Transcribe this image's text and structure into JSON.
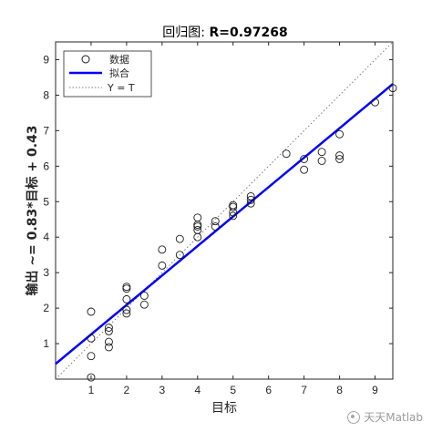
{
  "chart_data": {
    "type": "scatter",
    "title_prefix": "回归图: ",
    "title_stat": "R=0.97268",
    "xlabel": "目标",
    "ylabel": "输出 ~= 0.83*目标 + 0.43",
    "xlim": [
      0,
      9.5
    ],
    "ylim": [
      0,
      9.5
    ],
    "xticks": [
      1,
      2,
      3,
      4,
      5,
      6,
      7,
      8,
      9
    ],
    "yticks": [
      1,
      2,
      3,
      4,
      5,
      6,
      7,
      8,
      9
    ],
    "grid": false,
    "legend_position": "top-left",
    "legend": [
      {
        "label": "数据",
        "kind": "marker"
      },
      {
        "label": "拟合",
        "kind": "line"
      },
      {
        "label": "Y = T",
        "kind": "dotted"
      }
    ],
    "fit": {
      "slope": 0.83,
      "intercept": 0.43,
      "color": "#0000ff"
    },
    "identity_color": "#7a7a7a",
    "marker_color": "#1a1a1a",
    "points": [
      {
        "x": 1,
        "y": 0.05
      },
      {
        "x": 1,
        "y": 0.65
      },
      {
        "x": 1,
        "y": 1.15
      },
      {
        "x": 1,
        "y": 1.9
      },
      {
        "x": 1.5,
        "y": 0.9
      },
      {
        "x": 1.5,
        "y": 1.05
      },
      {
        "x": 1.5,
        "y": 1.35
      },
      {
        "x": 1.5,
        "y": 1.45
      },
      {
        "x": 2,
        "y": 1.85
      },
      {
        "x": 2,
        "y": 1.95
      },
      {
        "x": 2,
        "y": 2.25
      },
      {
        "x": 2,
        "y": 2.55
      },
      {
        "x": 2,
        "y": 2.6
      },
      {
        "x": 2.5,
        "y": 2.1
      },
      {
        "x": 2.5,
        "y": 2.35
      },
      {
        "x": 3,
        "y": 3.2
      },
      {
        "x": 3,
        "y": 3.65
      },
      {
        "x": 3.5,
        "y": 3.5
      },
      {
        "x": 3.5,
        "y": 3.95
      },
      {
        "x": 4,
        "y": 4.0
      },
      {
        "x": 4,
        "y": 4.2
      },
      {
        "x": 4,
        "y": 4.3
      },
      {
        "x": 4,
        "y": 4.35
      },
      {
        "x": 4,
        "y": 4.55
      },
      {
        "x": 4.5,
        "y": 4.3
      },
      {
        "x": 4.5,
        "y": 4.45
      },
      {
        "x": 5,
        "y": 4.6
      },
      {
        "x": 5,
        "y": 4.7
      },
      {
        "x": 5,
        "y": 4.85
      },
      {
        "x": 5,
        "y": 4.9
      },
      {
        "x": 5.5,
        "y": 4.95
      },
      {
        "x": 5.5,
        "y": 5.05
      },
      {
        "x": 5.5,
        "y": 5.15
      },
      {
        "x": 6.5,
        "y": 6.35
      },
      {
        "x": 7,
        "y": 5.9
      },
      {
        "x": 7,
        "y": 6.2
      },
      {
        "x": 7.5,
        "y": 6.15
      },
      {
        "x": 7.5,
        "y": 6.4
      },
      {
        "x": 8,
        "y": 6.2
      },
      {
        "x": 8,
        "y": 6.3
      },
      {
        "x": 8,
        "y": 6.9
      },
      {
        "x": 9,
        "y": 7.8
      },
      {
        "x": 9.5,
        "y": 8.2
      }
    ]
  },
  "watermark": {
    "text": "天天Matlab"
  }
}
